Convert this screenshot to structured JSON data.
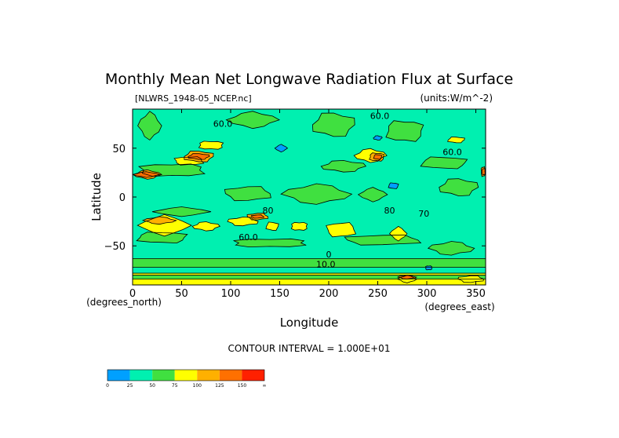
{
  "chart_data": {
    "type": "heatmap",
    "title": "Monthly Mean Net Longwave Radiation Flux at Surface",
    "file_label": "[NLWRS_1948-05_NCEP.nc]",
    "units_label": "(units:W/m^-2)",
    "xlabel": "Longitude",
    "ylabel": "Latitude",
    "x_unit_label": "(degrees_east)",
    "y_unit_label": "(degrees_north)",
    "xlim": [
      0,
      360
    ],
    "ylim": [
      -90,
      90
    ],
    "x_ticks": [
      0,
      50,
      100,
      150,
      200,
      250,
      300,
      350
    ],
    "y_ticks": [
      50,
      0,
      -50
    ],
    "contour_interval_text": "CONTOUR INTERVAL = 1.000E+01",
    "contour_labels": [
      {
        "text": "60.0",
        "x": 92,
        "y": 72
      },
      {
        "text": "60.0",
        "x": 252,
        "y": 80
      },
      {
        "text": "60.0",
        "x": 326,
        "y": 43
      },
      {
        "text": "60.0",
        "x": 118,
        "y": -44
      },
      {
        "text": "80",
        "x": 138,
        "y": -17
      },
      {
        "text": "70",
        "x": 297,
        "y": -20
      },
      {
        "text": "80",
        "x": 262,
        "y": -17
      },
      {
        "text": "10.0",
        "x": 197,
        "y": -72
      },
      {
        "text": "0",
        "x": 200,
        "y": -62
      }
    ],
    "legend": {
      "levels": [
        "0",
        "25",
        "50",
        "75",
        "100",
        "125",
        "150",
        "∞"
      ],
      "colors": [
        "#00a0ff",
        "#00f0b0",
        "#40e040",
        "#ffff00",
        "#ffb000",
        "#ff7000",
        "#ff2000"
      ]
    },
    "regions": [
      {
        "level": 1,
        "lon": [
          0,
          360
        ],
        "lat": [
          -90,
          90
        ]
      },
      {
        "level": 2,
        "lon": [
          5,
          30
        ],
        "lat": [
          58,
          88
        ]
      },
      {
        "level": 2,
        "lon": [
          95,
          150
        ],
        "lat": [
          70,
          88
        ]
      },
      {
        "level": 2,
        "lon": [
          180,
          230
        ],
        "lat": [
          60,
          88
        ]
      },
      {
        "level": 2,
        "lon": [
          255,
          300
        ],
        "lat": [
          55,
          80
        ]
      },
      {
        "level": 2,
        "lon": [
          0,
          80
        ],
        "lat": [
          20,
          35
        ]
      },
      {
        "level": 2,
        "lon": [
          90,
          145
        ],
        "lat": [
          -5,
          12
        ]
      },
      {
        "level": 2,
        "lon": [
          150,
          225
        ],
        "lat": [
          -8,
          14
        ]
      },
      {
        "level": 2,
        "lon": [
          230,
          260
        ],
        "lat": [
          -5,
          10
        ]
      },
      {
        "level": 2,
        "lon": [
          310,
          355
        ],
        "lat": [
          0,
          20
        ]
      },
      {
        "level": 2,
        "lon": [
          0,
          60
        ],
        "lat": [
          -48,
          -35
        ]
      },
      {
        "level": 2,
        "lon": [
          95,
          185
        ],
        "lat": [
          -52,
          -42
        ]
      },
      {
        "level": 2,
        "lon": [
          210,
          300
        ],
        "lat": [
          -50,
          -38
        ]
      },
      {
        "level": 2,
        "lon": [
          300,
          350
        ],
        "lat": [
          -60,
          -45
        ]
      },
      {
        "level": 2,
        "lon": [
          20,
          80
        ],
        "lat": [
          -20,
          -10
        ]
      },
      {
        "level": 2,
        "lon": [
          190,
          240
        ],
        "lat": [
          25,
          38
        ]
      },
      {
        "level": 2,
        "lon": [
          290,
          345
        ],
        "lat": [
          28,
          42
        ]
      },
      {
        "level": 2,
        "lon": [
          0,
          360
        ],
        "lat": [
          -72,
          -63
        ]
      },
      {
        "level": 3,
        "lon": [
          0,
          360
        ],
        "lat": [
          -90,
          -78
        ]
      },
      {
        "level": 2,
        "lon": [
          0,
          360
        ],
        "lat": [
          -84,
          -80
        ]
      },
      {
        "level": 3,
        "lon": [
          5,
          60
        ],
        "lat": [
          -40,
          -18
        ]
      },
      {
        "level": 3,
        "lon": [
          60,
          90
        ],
        "lat": [
          -35,
          -25
        ]
      },
      {
        "level": 3,
        "lon": [
          135,
          150
        ],
        "lat": [
          -35,
          -25
        ]
      },
      {
        "level": 3,
        "lon": [
          160,
          180
        ],
        "lat": [
          -35,
          -25
        ]
      },
      {
        "level": 3,
        "lon": [
          195,
          230
        ],
        "lat": [
          -42,
          -25
        ]
      },
      {
        "level": 3,
        "lon": [
          95,
          130
        ],
        "lat": [
          -30,
          -20
        ]
      },
      {
        "level": 3,
        "lon": [
          262,
          280
        ],
        "lat": [
          -45,
          -30
        ]
      },
      {
        "level": 3,
        "lon": [
          225,
          260
        ],
        "lat": [
          35,
          50
        ]
      },
      {
        "level": 3,
        "lon": [
          320,
          340
        ],
        "lat": [
          55,
          62
        ]
      },
      {
        "level": 3,
        "lon": [
          65,
          95
        ],
        "lat": [
          48,
          58
        ]
      },
      {
        "level": 3,
        "lon": [
          40,
          75
        ],
        "lat": [
          32,
          42
        ]
      },
      {
        "level": 3,
        "lon": [
          330,
          360
        ],
        "lat": [
          -88,
          -80
        ]
      },
      {
        "level": 3,
        "lon": [
          270,
          290
        ],
        "lat": [
          -88,
          -80
        ]
      },
      {
        "level": 4,
        "lon": [
          0,
          30
        ],
        "lat": [
          18,
          28
        ]
      },
      {
        "level": 4,
        "lon": [
          50,
          85
        ],
        "lat": [
          35,
          48
        ]
      },
      {
        "level": 4,
        "lon": [
          240,
          258
        ],
        "lat": [
          36,
          46
        ]
      },
      {
        "level": 4,
        "lon": [
          355,
          360
        ],
        "lat": [
          20,
          32
        ]
      },
      {
        "level": 4,
        "lon": [
          115,
          140
        ],
        "lat": [
          -24,
          -16
        ]
      },
      {
        "level": 4,
        "lon": [
          10,
          45
        ],
        "lat": [
          -28,
          -20
        ]
      },
      {
        "level": 5,
        "lon": [
          0,
          28
        ],
        "lat": [
          20,
          26
        ]
      },
      {
        "level": 5,
        "lon": [
          55,
          80
        ],
        "lat": [
          38,
          45
        ]
      },
      {
        "level": 5,
        "lon": [
          245,
          255
        ],
        "lat": [
          38,
          44
        ]
      },
      {
        "level": 5,
        "lon": [
          356,
          360
        ],
        "lat": [
          22,
          30
        ]
      },
      {
        "level": 5,
        "lon": [
          120,
          135
        ],
        "lat": [
          -22,
          -18
        ]
      },
      {
        "level": 5,
        "lon": [
          270,
          290
        ],
        "lat": [
          -84,
          -80
        ]
      },
      {
        "level": 0,
        "lon": [
          145,
          158
        ],
        "lat": [
          46,
          54
        ]
      },
      {
        "level": 0,
        "lon": [
          245,
          255
        ],
        "lat": [
          58,
          63
        ]
      },
      {
        "level": 0,
        "lon": [
          260,
          272
        ],
        "lat": [
          8,
          15
        ]
      },
      {
        "level": 0,
        "lon": [
          298,
          306
        ],
        "lat": [
          -75,
          -70
        ]
      }
    ]
  }
}
